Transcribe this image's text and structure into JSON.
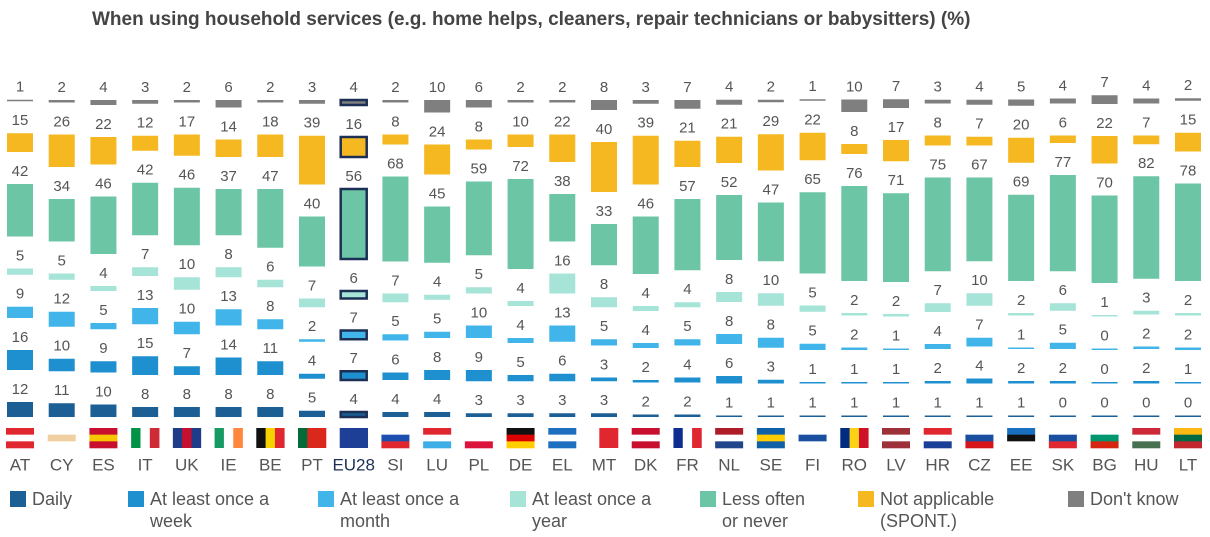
{
  "chart_data": {
    "type": "stacked-bar",
    "title": "When using household services (e.g. home helps, cleaners, repair technicians or babysitters)  (%)",
    "categories": [
      "AT",
      "CY",
      "ES",
      "IT",
      "UK",
      "IE",
      "BE",
      "PT",
      "EU28",
      "SI",
      "LU",
      "PL",
      "DE",
      "EL",
      "MT",
      "DK",
      "FR",
      "NL",
      "SE",
      "FI",
      "RO",
      "LV",
      "HR",
      "CZ",
      "EE",
      "SK",
      "BG",
      "HU",
      "LT"
    ],
    "series": [
      {
        "name": "Daily",
        "color": "#1b5f95",
        "values": [
          12,
          11,
          10,
          8,
          8,
          8,
          8,
          5,
          4,
          4,
          4,
          3,
          3,
          3,
          3,
          2,
          2,
          1,
          1,
          1,
          1,
          1,
          1,
          1,
          1,
          0,
          0,
          0,
          0
        ]
      },
      {
        "name": "At least once a week",
        "color": "#1e8fcf",
        "values": [
          16,
          10,
          9,
          15,
          7,
          14,
          11,
          4,
          7,
          6,
          8,
          9,
          5,
          6,
          3,
          2,
          4,
          6,
          3,
          1,
          1,
          1,
          2,
          4,
          2,
          2,
          0,
          2,
          1
        ]
      },
      {
        "name": "At least once a month",
        "color": "#41b5ea",
        "values": [
          9,
          12,
          5,
          13,
          10,
          13,
          8,
          2,
          7,
          5,
          5,
          10,
          4,
          13,
          5,
          4,
          5,
          8,
          8,
          5,
          2,
          1,
          4,
          7,
          1,
          5,
          0,
          2,
          2
        ]
      },
      {
        "name": "At least once a year",
        "color": "#a6e4d8",
        "values": [
          5,
          5,
          4,
          7,
          10,
          8,
          6,
          7,
          6,
          7,
          4,
          5,
          4,
          16,
          8,
          4,
          4,
          8,
          10,
          5,
          2,
          2,
          7,
          10,
          2,
          6,
          1,
          3,
          2
        ]
      },
      {
        "name": "Less often or never",
        "color": "#6cc6a6",
        "values": [
          42,
          34,
          46,
          42,
          46,
          37,
          47,
          40,
          56,
          68,
          45,
          59,
          72,
          38,
          33,
          46,
          57,
          52,
          47,
          65,
          76,
          71,
          75,
          67,
          69,
          77,
          70,
          82,
          78
        ]
      },
      {
        "name": "Not applicable (SPONT.)",
        "color": "#f6b820",
        "values": [
          15,
          26,
          22,
          12,
          17,
          14,
          18,
          39,
          16,
          8,
          24,
          8,
          10,
          22,
          40,
          39,
          21,
          21,
          29,
          22,
          8,
          17,
          8,
          7,
          20,
          6,
          22,
          7,
          15
        ]
      },
      {
        "name": "Don't know",
        "color": "#7f7f7f",
        "values": [
          1,
          2,
          4,
          3,
          2,
          6,
          2,
          3,
          4,
          2,
          10,
          6,
          2,
          2,
          8,
          3,
          7,
          4,
          2,
          1,
          10,
          7,
          3,
          4,
          5,
          4,
          7,
          4,
          2
        ]
      }
    ],
    "highlight": "EU28"
  }
}
